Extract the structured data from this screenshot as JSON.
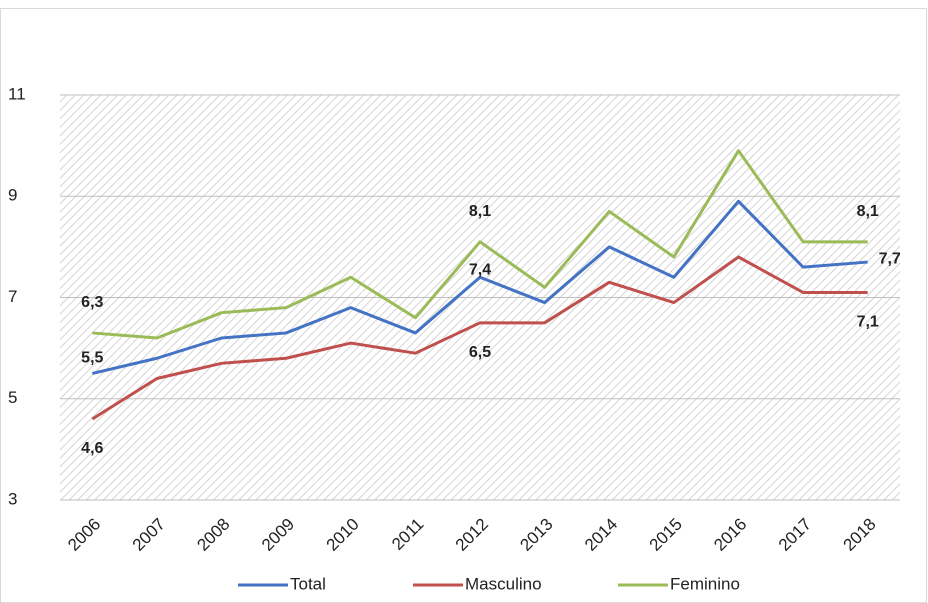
{
  "chart_data": {
    "type": "line",
    "categories": [
      "2006",
      "2007",
      "2008",
      "2009",
      "2010",
      "2011",
      "2012",
      "2013",
      "2014",
      "2015",
      "2016",
      "2017",
      "2018"
    ],
    "series": [
      {
        "name": "Total",
        "color": "#4472c4",
        "values": [
          5.5,
          5.8,
          6.2,
          6.3,
          6.8,
          6.3,
          7.4,
          6.9,
          8.0,
          7.4,
          8.9,
          7.6,
          7.7
        ],
        "value_labels": [
          "5,5",
          null,
          null,
          null,
          null,
          null,
          "7,4",
          null,
          null,
          null,
          null,
          null,
          "7,7"
        ]
      },
      {
        "name": "Masculino",
        "color": "#c0504d",
        "values": [
          4.6,
          5.4,
          5.7,
          5.8,
          6.1,
          5.9,
          6.5,
          6.5,
          7.3,
          6.9,
          7.8,
          7.1,
          7.1
        ],
        "value_labels": [
          "4,6",
          null,
          null,
          null,
          null,
          null,
          "6,5",
          null,
          null,
          null,
          null,
          null,
          "7,1"
        ]
      },
      {
        "name": "Feminino",
        "color": "#9bbb59",
        "values": [
          6.3,
          6.2,
          6.7,
          6.8,
          7.4,
          6.6,
          8.1,
          7.2,
          8.7,
          7.8,
          9.9,
          8.1,
          8.1
        ],
        "value_labels": [
          "6,3",
          null,
          null,
          null,
          null,
          null,
          "8,1",
          null,
          null,
          null,
          null,
          null,
          "8,1"
        ]
      }
    ],
    "ylim": [
      3,
      11
    ],
    "yticks": [
      3,
      5,
      7,
      9,
      11
    ],
    "grid": true,
    "legend": "bottom"
  }
}
